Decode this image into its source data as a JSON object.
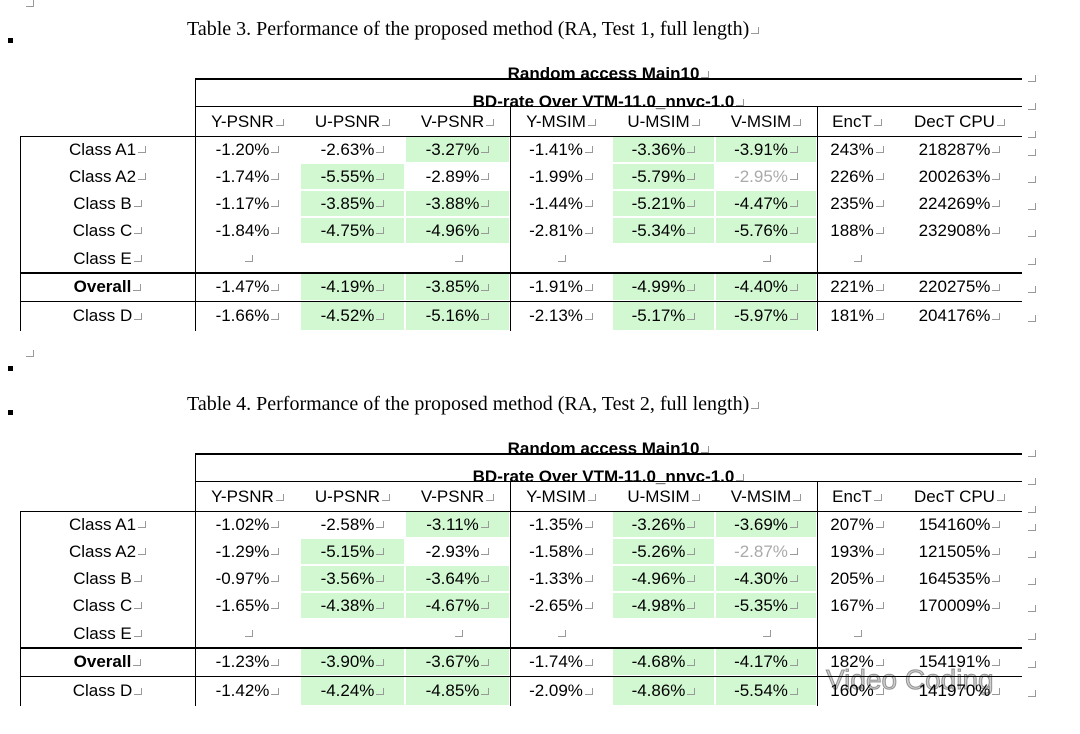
{
  "tables": [
    {
      "caption": "Table 3. Performance of the proposed method (RA, Test 1, full length)",
      "title": "Random access Main10",
      "subtitle": "BD-rate Over VTM-11.0_nnvc-1.0",
      "columns": [
        "Y-PSNR",
        "U-PSNR",
        "V-PSNR",
        "Y-MSIM",
        "U-MSIM",
        "V-MSIM",
        "EncT",
        "DecT CPU"
      ],
      "rows": [
        {
          "label": "Class A1",
          "cells": [
            "-1.20%",
            "-2.63%",
            "-3.27%",
            "-1.41%",
            "-3.36%",
            "-3.91%",
            "243%",
            "218287%"
          ]
        },
        {
          "label": "Class A2",
          "cells": [
            "-1.74%",
            "-5.55%",
            "-2.89%",
            "-1.99%",
            "-5.79%",
            "-2.95%",
            "226%",
            "200263%"
          ]
        },
        {
          "label": "Class B",
          "cells": [
            "-1.17%",
            "-3.85%",
            "-3.88%",
            "-1.44%",
            "-5.21%",
            "-4.47%",
            "235%",
            "224269%"
          ]
        },
        {
          "label": "Class C",
          "cells": [
            "-1.84%",
            "-4.75%",
            "-4.96%",
            "-2.81%",
            "-5.34%",
            "-5.76%",
            "188%",
            "232908%"
          ]
        },
        {
          "label": "Class E",
          "cells": [
            null,
            null,
            null,
            null,
            null,
            null,
            null,
            null
          ]
        },
        {
          "label": "Overall",
          "cells": [
            "-1.47%",
            "-4.19%",
            "-3.85%",
            "-1.91%",
            "-4.99%",
            "-4.40%",
            "221%",
            "220275%"
          ]
        },
        {
          "label": "Class D",
          "cells": [
            "-1.66%",
            "-4.52%",
            "-5.16%",
            "-2.13%",
            "-5.17%",
            "-5.97%",
            "181%",
            "204176%"
          ]
        }
      ]
    },
    {
      "caption": "Table 4. Performance of the proposed method (RA, Test 2, full length)",
      "title": "Random access Main10",
      "subtitle": "BD-rate Over VTM-11.0_nnvc-1.0",
      "columns": [
        "Y-PSNR",
        "U-PSNR",
        "V-PSNR",
        "Y-MSIM",
        "U-MSIM",
        "V-MSIM",
        "EncT",
        "DecT CPU"
      ],
      "rows": [
        {
          "label": "Class A1",
          "cells": [
            "-1.02%",
            "-2.58%",
            "-3.11%",
            "-1.35%",
            "-3.26%",
            "-3.69%",
            "207%",
            "154160%"
          ]
        },
        {
          "label": "Class A2",
          "cells": [
            "-1.29%",
            "-5.15%",
            "-2.93%",
            "-1.58%",
            "-5.26%",
            "-2.87%",
            "193%",
            "121505%"
          ]
        },
        {
          "label": "Class B",
          "cells": [
            "-0.97%",
            "-3.56%",
            "-3.64%",
            "-1.33%",
            "-4.96%",
            "-4.30%",
            "205%",
            "164535%"
          ]
        },
        {
          "label": "Class C",
          "cells": [
            "-1.65%",
            "-4.38%",
            "-4.67%",
            "-2.65%",
            "-4.98%",
            "-5.35%",
            "167%",
            "170009%"
          ]
        },
        {
          "label": "Class E",
          "cells": [
            null,
            null,
            null,
            null,
            null,
            null,
            null,
            null
          ]
        },
        {
          "label": "Overall",
          "cells": [
            "-1.23%",
            "-3.90%",
            "-3.67%",
            "-1.74%",
            "-4.68%",
            "-4.17%",
            "182%",
            "154191%"
          ]
        },
        {
          "label": "Class D",
          "cells": [
            "-1.42%",
            "-4.24%",
            "-4.85%",
            "-2.09%",
            "-4.86%",
            "-5.54%",
            "160%",
            "141970%"
          ]
        }
      ]
    }
  ],
  "watermark": "Video Coding"
}
